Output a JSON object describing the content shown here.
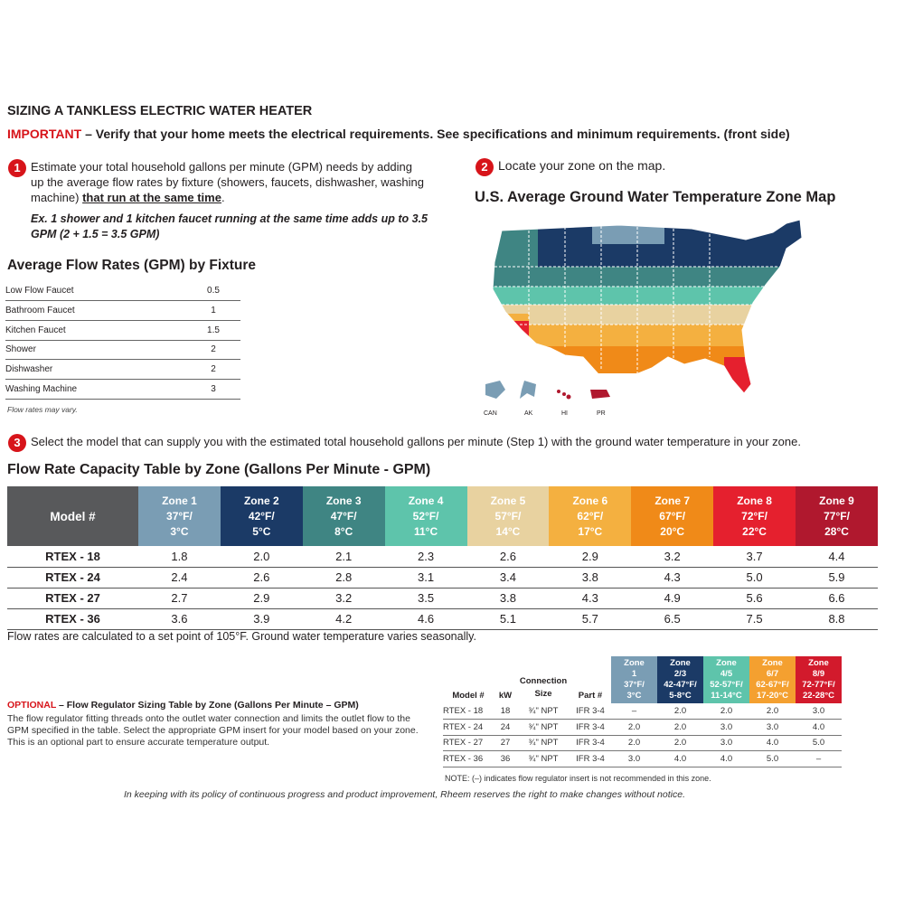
{
  "header": {
    "title": "SIZING A TANKLESS ELECTRIC WATER HEATER",
    "important_label": "IMPORTANT",
    "important_text": " – Verify that your home meets the electrical requirements. See specifications and minimum requirements. (front side)"
  },
  "step1": {
    "number": "1",
    "text_a": "Estimate your total household gallons per minute (GPM) needs by adding up the average flow rates by fixture (showers, faucets, dishwasher, washing machine) ",
    "text_b": "that run at the same time",
    "text_c": ".",
    "example": "Ex. 1 shower and 1 kitchen faucet running at the same time adds up to 3.5 GPM (2 + 1.5 = 3.5 GPM)"
  },
  "avg_flow": {
    "title": "Average Flow Rates (GPM) by Fixture",
    "rows": [
      {
        "fixture": "Low Flow Faucet",
        "gpm": "0.5"
      },
      {
        "fixture": "Bathroom Faucet",
        "gpm": "1"
      },
      {
        "fixture": "Kitchen Faucet",
        "gpm": "1.5"
      },
      {
        "fixture": "Shower",
        "gpm": "2"
      },
      {
        "fixture": "Dishwasher",
        "gpm": "2"
      },
      {
        "fixture": "Washing Machine",
        "gpm": "3"
      }
    ],
    "note": "Flow rates may vary."
  },
  "step2": {
    "number": "2",
    "text": "Locate your zone on the map.",
    "map_title": "U.S. Average Ground Water Temperature Zone Map",
    "insets": {
      "can": "CAN",
      "ak": "AK",
      "hi": "HI",
      "pr": "PR"
    }
  },
  "step3": {
    "number": "3",
    "text": "Select the model that can supply you with the estimated total household gallons per minute (Step 1) with the ground water temperature in your zone."
  },
  "capacity": {
    "title": "Flow Rate Capacity Table by Zone (Gallons Per Minute - GPM)",
    "model_header": "Model #",
    "zones": [
      {
        "name": "Zone 1",
        "f": "37°F/",
        "c": "3°C",
        "color": "#7a9db4"
      },
      {
        "name": "Zone 2",
        "f": "42°F/",
        "c": "5°C",
        "color": "#1b3a66"
      },
      {
        "name": "Zone 3",
        "f": "47°F/",
        "c": "8°C",
        "color": "#3f8583"
      },
      {
        "name": "Zone 4",
        "f": "52°F/",
        "c": "11°C",
        "color": "#5ec4ab"
      },
      {
        "name": "Zone 5",
        "f": "57°F/",
        "c": "14°C",
        "color": "#e8d2a0"
      },
      {
        "name": "Zone 6",
        "f": "62°F/",
        "c": "17°C",
        "color": "#f4b040"
      },
      {
        "name": "Zone 7",
        "f": "67°F/",
        "c": "20°C",
        "color": "#f08a18"
      },
      {
        "name": "Zone 8",
        "f": "72°F/",
        "c": "22°C",
        "color": "#e5202e"
      },
      {
        "name": "Zone 9",
        "f": "77°F/",
        "c": "28°C",
        "color": "#b0182e"
      }
    ],
    "rows": [
      {
        "model": "RTEX - 18",
        "values": [
          "1.8",
          "2.0",
          "2.1",
          "2.3",
          "2.6",
          "2.9",
          "3.2",
          "3.7",
          "4.4"
        ]
      },
      {
        "model": "RTEX - 24",
        "values": [
          "2.4",
          "2.6",
          "2.8",
          "3.1",
          "3.4",
          "3.8",
          "4.3",
          "5.0",
          "5.9"
        ]
      },
      {
        "model": "RTEX - 27",
        "values": [
          "2.7",
          "2.9",
          "3.2",
          "3.5",
          "3.8",
          "4.3",
          "4.9",
          "5.6",
          "6.6"
        ]
      },
      {
        "model": "RTEX - 36",
        "values": [
          "3.6",
          "3.9",
          "4.2",
          "4.6",
          "5.1",
          "5.7",
          "6.5",
          "7.5",
          "8.8"
        ]
      }
    ],
    "note": "Flow rates are calculated to a set point of 105°F. Ground water temperature varies seasonally."
  },
  "optional": {
    "label": "OPTIONAL",
    "title": " – Flow Regulator Sizing Table by Zone (Gallons Per Minute – GPM)",
    "body": "The flow regulator fitting threads onto the outlet water connection and limits the outlet flow to the GPM specified in the table. Select the appropriate GPM insert for your model based on your zone. This is an optional part to ensure accurate temperature output."
  },
  "regulator": {
    "headers": {
      "model": "Model #",
      "kw": "kW",
      "conn": "Connection Size",
      "part": "Part #"
    },
    "zones": [
      {
        "l1": "Zone",
        "l2": "1",
        "l3": "37°F/",
        "l4": "3°C",
        "color": "#7a9db4"
      },
      {
        "l1": "Zone",
        "l2": "2/3",
        "l3": "42-47°F/",
        "l4": "5-8°C",
        "color": "#1b3a66"
      },
      {
        "l1": "Zone",
        "l2": "4/5",
        "l3": "52-57°F/",
        "l4": "11-14°C",
        "color": "#5ec4ab"
      },
      {
        "l1": "Zone",
        "l2": "6/7",
        "l3": "62-67°F/",
        "l4": "17-20°C",
        "color": "#f4a030"
      },
      {
        "l1": "Zone",
        "l2": "8/9",
        "l3": "72-77°F/",
        "l4": "22-28°C",
        "color": "#d21a2c"
      }
    ],
    "rows": [
      {
        "model": "RTEX - 18",
        "kw": "18",
        "conn": "¾\" NPT",
        "part": "IFR 3-4",
        "values": [
          "–",
          "2.0",
          "2.0",
          "2.0",
          "3.0"
        ]
      },
      {
        "model": "RTEX - 24",
        "kw": "24",
        "conn": "¾\" NPT",
        "part": "IFR 3-4",
        "values": [
          "2.0",
          "2.0",
          "3.0",
          "3.0",
          "4.0"
        ]
      },
      {
        "model": "RTEX - 27",
        "kw": "27",
        "conn": "¾\" NPT",
        "part": "IFR 3-4",
        "values": [
          "2.0",
          "2.0",
          "3.0",
          "4.0",
          "5.0"
        ]
      },
      {
        "model": "RTEX - 36",
        "kw": "36",
        "conn": "¾\" NPT",
        "part": "IFR 3-4",
        "values": [
          "3.0",
          "4.0",
          "4.0",
          "5.0",
          "–"
        ]
      }
    ],
    "note": "NOTE: (–) indicates flow regulator insert is not recommended in this zone."
  },
  "footer": "In keeping with its policy of continuous progress and product improvement, Rheem reserves the right to make changes without notice."
}
